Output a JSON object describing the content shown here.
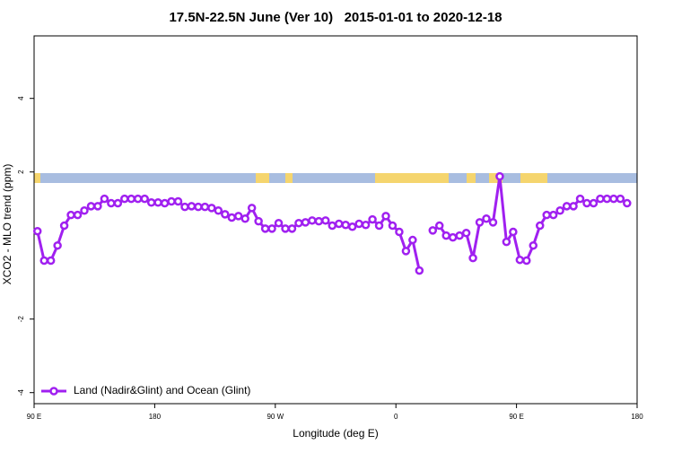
{
  "chart_data": {
    "type": "line",
    "title": "17.5N-22.5N June (Ver 10)   2015-01-01 to 2020-12-18",
    "xlabel": "Longitude (deg E)",
    "ylabel": "XCO2 - MLO trend (ppm)",
    "x": [
      92.5,
      97.5,
      102.5,
      107.5,
      112.5,
      117.5,
      122.5,
      127.5,
      132.5,
      137.5,
      142.5,
      147.5,
      152.5,
      157.5,
      162.5,
      167.5,
      172.5,
      177.5,
      182.5,
      187.5,
      192.5,
      197.5,
      202.5,
      207.5,
      212.5,
      217.5,
      222.5,
      227.5,
      232.5,
      237.5,
      242.5,
      247.5,
      252.5,
      257.5,
      262.5,
      267.5,
      272.5,
      277.5,
      282.5,
      287.5,
      292.5,
      297.5,
      302.5,
      307.5,
      312.5,
      317.5,
      322.5,
      327.5,
      332.5,
      337.5,
      342.5,
      347.5,
      352.5,
      357.5,
      362.5,
      367.5,
      372.5,
      377.5,
      382.5,
      387.5,
      392.5,
      397.5,
      402.5,
      407.5,
      412.5,
      417.5,
      422.5,
      427.5,
      432.5,
      437.5,
      442.5,
      447.5,
      452.5,
      457.5,
      462.5,
      467.5,
      472.5,
      477.5,
      482.5,
      487.5,
      492.5,
      497.5,
      502.5,
      507.5,
      512.5,
      517.5,
      522.5,
      527.5,
      532.5
    ],
    "series": [
      {
        "name": "Land (Nadir&Glint) and Ocean (Glint)",
        "color": "#a020f0",
        "values": [
          0.39,
          -0.41,
          -0.41,
          0.0,
          0.54,
          0.83,
          0.83,
          0.95,
          1.07,
          1.07,
          1.27,
          1.15,
          1.15,
          1.27,
          1.27,
          1.27,
          1.27,
          1.17,
          1.17,
          1.15,
          1.2,
          1.2,
          1.05,
          1.07,
          1.05,
          1.05,
          1.02,
          0.95,
          0.85,
          0.76,
          0.8,
          0.73,
          1.02,
          0.66,
          0.46,
          0.46,
          0.61,
          0.46,
          0.46,
          0.61,
          0.63,
          0.68,
          0.66,
          0.68,
          0.54,
          0.59,
          0.56,
          0.51,
          0.59,
          0.56,
          0.71,
          0.54,
          0.8,
          0.54,
          0.37,
          -0.15,
          0.15,
          -0.68,
          null,
          0.41,
          0.54,
          0.27,
          0.22,
          0.27,
          0.34,
          -0.34,
          0.63,
          0.73,
          0.63,
          1.88,
          0.1,
          0.37,
          -0.39,
          -0.41,
          0.0,
          0.54,
          0.83,
          0.83,
          0.95,
          1.07,
          1.07,
          1.27,
          1.15,
          1.15,
          1.27,
          1.27,
          1.27,
          1.27,
          1.15
        ]
      }
    ],
    "xlim": [
      90,
      540
    ],
    "xticks": [
      {
        "value": 90,
        "label": "90 E"
      },
      {
        "value": 180,
        "label": "180"
      },
      {
        "value": 270,
        "label": "90 W"
      },
      {
        "value": 360,
        "label": "0"
      },
      {
        "value": 450,
        "label": "90 E"
      },
      {
        "value": 540,
        "label": "180"
      }
    ],
    "ylim": [
      -4.3,
      5.7
    ],
    "yticks": [
      -4,
      -2,
      2,
      4
    ],
    "legend": "bottom-left"
  }
}
